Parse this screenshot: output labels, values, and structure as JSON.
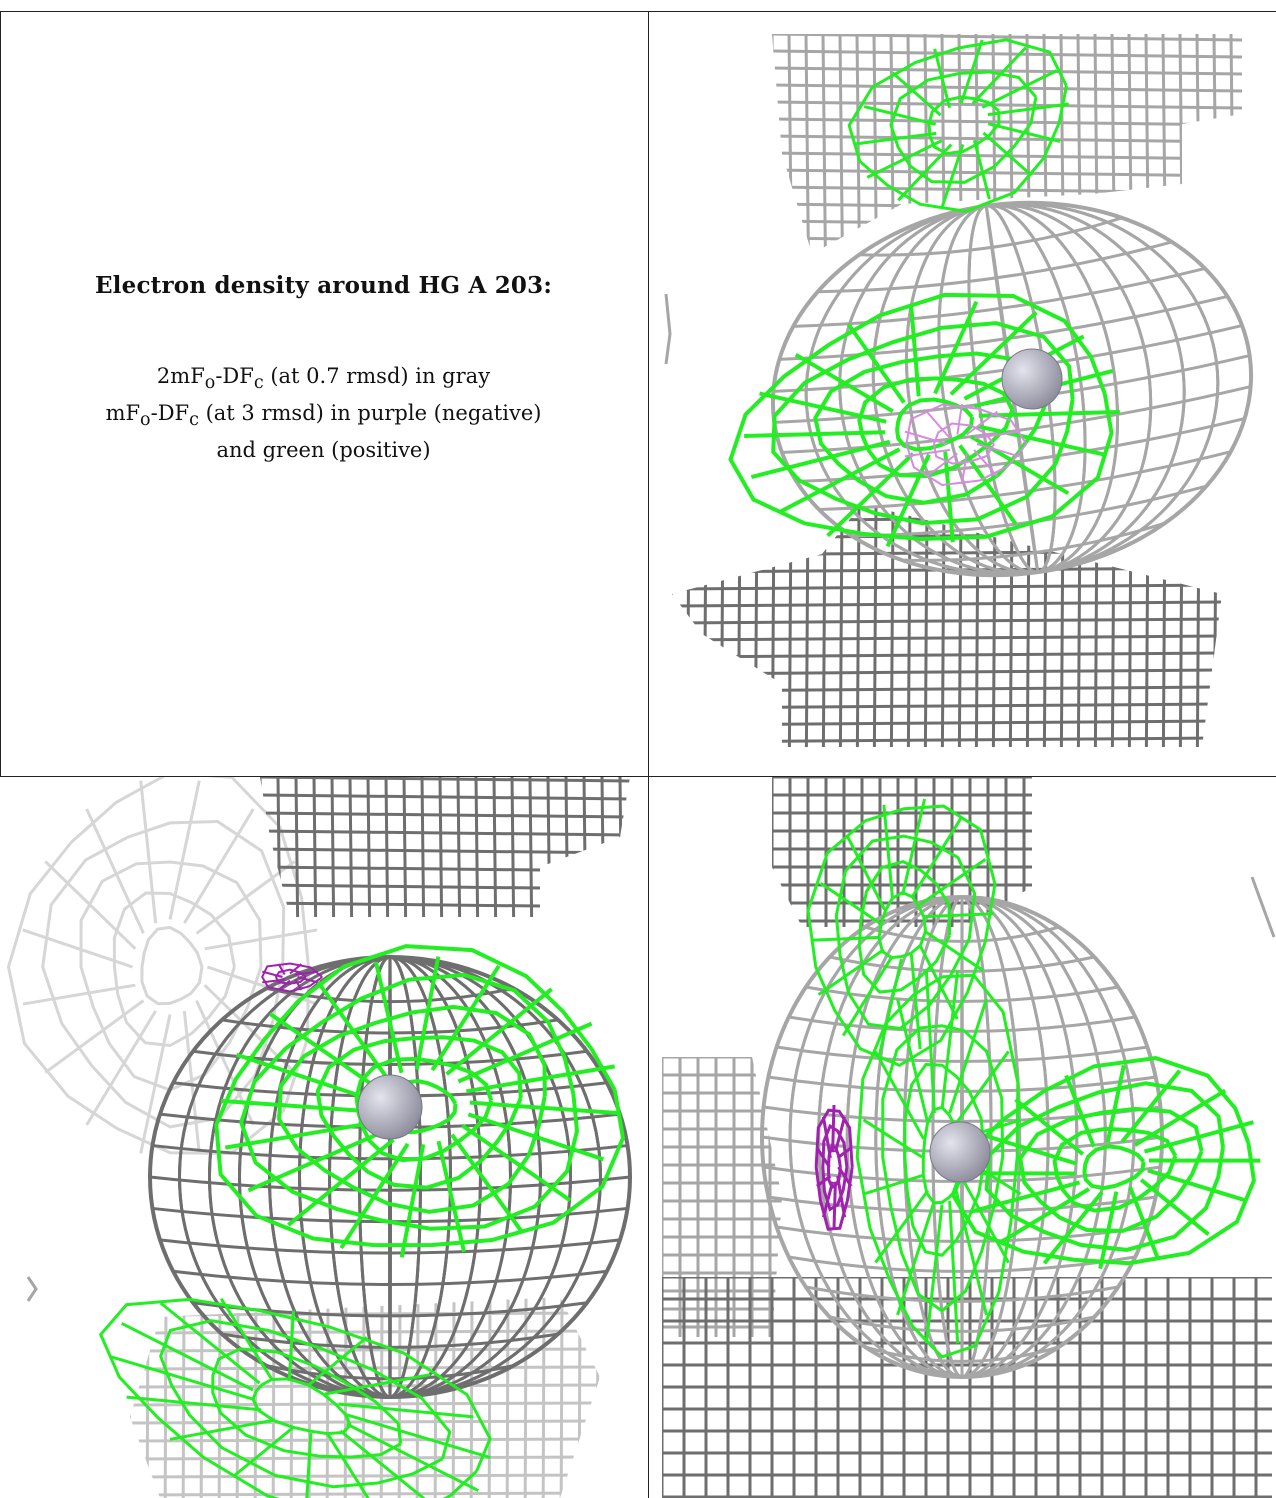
{
  "caption": {
    "title": "Electron density around HG A 203:",
    "line1_pre": "2mF",
    "line1_sub1": "o",
    "line1_mid": "-DF",
    "line1_sub2": "c",
    "line1_post": " (at 0.7 rmsd) in gray",
    "line2_pre": "mF",
    "line2_sub1": "o",
    "line2_mid": "-DF",
    "line2_sub2": "c",
    "line2_post": " (at 3 rmsd) in purple (negative)",
    "line3": "and green (positive)"
  },
  "panels": [
    {
      "name": "view-top-right"
    },
    {
      "name": "view-bottom-left"
    },
    {
      "name": "view-bottom-right"
    }
  ],
  "colors": {
    "map_2fofc": "#a6a6a6",
    "map_2fofc_dark": "#6e6e6e",
    "map_fofc_positive": "#22ee22",
    "map_fofc_negative": "#a020b0",
    "atom": "#8c8c9c"
  },
  "map_levels": {
    "2mFo-DFc_rmsd": 0.7,
    "mFo-DFc_rmsd": 3
  }
}
